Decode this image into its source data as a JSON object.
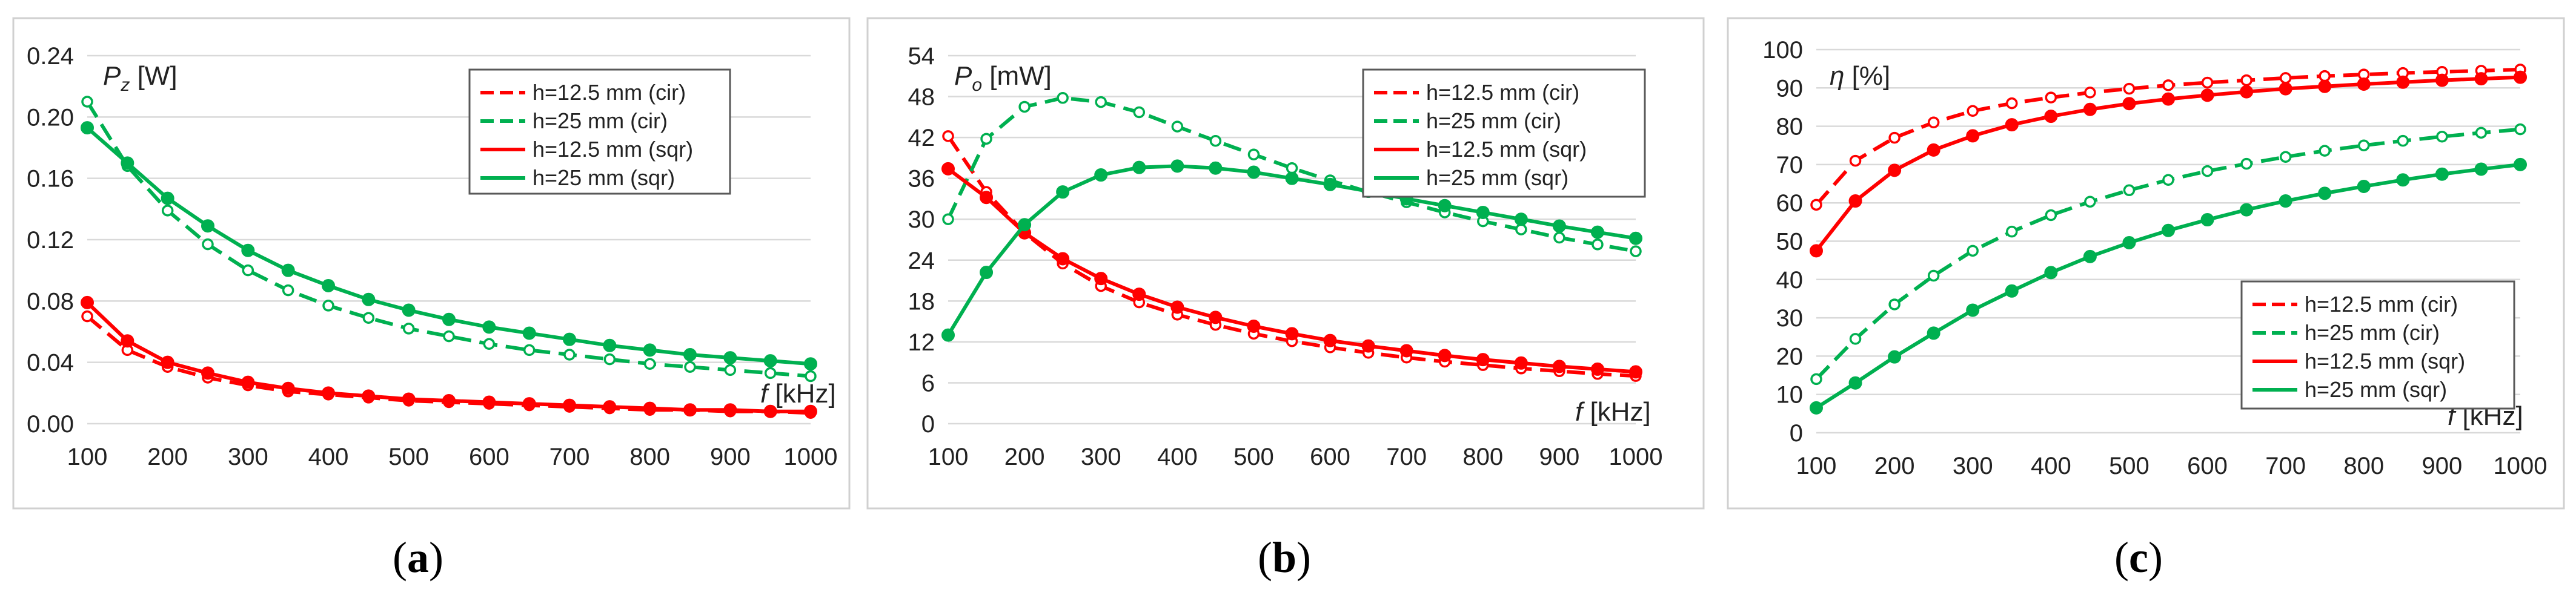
{
  "colors": {
    "red": "#ff0000",
    "green": "#00b050"
  },
  "chart_data": [
    {
      "type": "line",
      "caption": {
        "open": "(",
        "letter": "a",
        "close": ")"
      },
      "title": "",
      "ylabel": {
        "symbol": "P",
        "sub": "z",
        "unit": " [W]"
      },
      "xlabel": {
        "symbol": "f",
        "unit": " [kHz]"
      },
      "xlim": [
        100,
        1000
      ],
      "ylim": [
        0,
        0.24
      ],
      "xticks": [
        100,
        200,
        300,
        400,
        500,
        600,
        700,
        800,
        900,
        1000
      ],
      "yticks": [
        0,
        0.04,
        0.08,
        0.12,
        0.16,
        0.2,
        0.24
      ],
      "ytick_labels": [
        "0.00",
        "0.04",
        "0.08",
        "0.12",
        "0.16",
        "0.20",
        "0.24"
      ],
      "legend_position": "top-right",
      "x": [
        100,
        150,
        200,
        250,
        300,
        350,
        400,
        450,
        500,
        550,
        600,
        650,
        700,
        750,
        800,
        850,
        900,
        950,
        1000
      ],
      "series": [
        {
          "name": "h=12.5 mm (cir)",
          "color": "red",
          "dashed": true,
          "marker": "open",
          "values": [
            0.07,
            0.048,
            0.037,
            0.03,
            0.025,
            0.021,
            0.019,
            0.017,
            0.015,
            0.014,
            0.013,
            0.012,
            0.011,
            0.01,
            0.009,
            0.009,
            0.008,
            0.008,
            0.007
          ]
        },
        {
          "name": "h=25 mm (cir)",
          "color": "green",
          "dashed": true,
          "marker": "open",
          "values": [
            0.21,
            0.168,
            0.139,
            0.117,
            0.1,
            0.087,
            0.077,
            0.069,
            0.062,
            0.057,
            0.052,
            0.048,
            0.045,
            0.042,
            0.039,
            0.037,
            0.035,
            0.033,
            0.031
          ]
        },
        {
          "name": "h=12.5 mm (sqr)",
          "color": "red",
          "dashed": false,
          "marker": "filled",
          "values": [
            0.079,
            0.054,
            0.04,
            0.033,
            0.027,
            0.023,
            0.02,
            0.018,
            0.016,
            0.015,
            0.014,
            0.013,
            0.012,
            0.011,
            0.01,
            0.009,
            0.009,
            0.008,
            0.008
          ]
        },
        {
          "name": "h=25 mm (sqr)",
          "color": "green",
          "dashed": false,
          "marker": "filled",
          "values": [
            0.193,
            0.17,
            0.147,
            0.129,
            0.113,
            0.1,
            0.09,
            0.081,
            0.074,
            0.068,
            0.063,
            0.059,
            0.055,
            0.051,
            0.048,
            0.045,
            0.043,
            0.041,
            0.039
          ]
        }
      ]
    },
    {
      "type": "line",
      "caption": {
        "open": "(",
        "letter": "b",
        "close": ")"
      },
      "title": "",
      "ylabel": {
        "symbol": "P",
        "sub": "o",
        "unit": " [mW]"
      },
      "xlabel": {
        "symbol": "f",
        "unit": " [kHz]"
      },
      "xlim": [
        100,
        1000
      ],
      "ylim": [
        0,
        54
      ],
      "xticks": [
        100,
        200,
        300,
        400,
        500,
        600,
        700,
        800,
        900,
        1000
      ],
      "yticks": [
        0,
        6,
        12,
        18,
        24,
        30,
        36,
        42,
        48,
        54
      ],
      "ytick_labels": [
        "0",
        "6",
        "12",
        "18",
        "24",
        "30",
        "36",
        "42",
        "48",
        "54"
      ],
      "legend_position": "top-right",
      "x": [
        100,
        150,
        200,
        250,
        300,
        350,
        400,
        450,
        500,
        550,
        600,
        650,
        700,
        750,
        800,
        850,
        900,
        950,
        1000
      ],
      "series": [
        {
          "name": "h=12.5 mm (cir)",
          "color": "red",
          "dashed": true,
          "marker": "open",
          "values": [
            42.2,
            34.0,
            28.0,
            23.5,
            20.2,
            17.8,
            16.0,
            14.5,
            13.2,
            12.1,
            11.2,
            10.4,
            9.7,
            9.1,
            8.6,
            8.1,
            7.7,
            7.3,
            7.0
          ]
        },
        {
          "name": "h=25 mm (cir)",
          "color": "green",
          "dashed": true,
          "marker": "open",
          "values": [
            30.0,
            41.8,
            46.5,
            47.8,
            47.2,
            45.7,
            43.6,
            41.5,
            39.5,
            37.5,
            35.7,
            34.0,
            32.5,
            31.0,
            29.7,
            28.5,
            27.3,
            26.3,
            25.3
          ]
        },
        {
          "name": "h=12.5 mm (sqr)",
          "color": "red",
          "dashed": false,
          "marker": "filled",
          "values": [
            37.4,
            33.2,
            28.0,
            24.2,
            21.3,
            19.0,
            17.1,
            15.6,
            14.3,
            13.2,
            12.2,
            11.4,
            10.7,
            10.0,
            9.4,
            8.9,
            8.4,
            8.0,
            7.6
          ]
        },
        {
          "name": "h=25 mm (sqr)",
          "color": "green",
          "dashed": false,
          "marker": "filled",
          "values": [
            13.0,
            22.2,
            29.2,
            34.0,
            36.5,
            37.6,
            37.8,
            37.5,
            36.9,
            36.0,
            35.1,
            34.1,
            33.0,
            32.0,
            31.0,
            30.0,
            29.0,
            28.1,
            27.2
          ]
        }
      ]
    },
    {
      "type": "line",
      "caption": {
        "open": "(",
        "letter": "c",
        "close": ")"
      },
      "title": "",
      "ylabel": {
        "symbol": "η",
        "sub": "",
        "unit": " [%]"
      },
      "xlabel": {
        "symbol": "f",
        "unit": " [kHz]"
      },
      "xlim": [
        100,
        1000
      ],
      "ylim": [
        0,
        100
      ],
      "xticks": [
        100,
        200,
        300,
        400,
        500,
        600,
        700,
        800,
        900,
        1000
      ],
      "yticks": [
        0,
        10,
        20,
        30,
        40,
        50,
        60,
        70,
        80,
        90,
        100
      ],
      "ytick_labels": [
        "0",
        "10",
        "20",
        "30",
        "40",
        "50",
        "60",
        "70",
        "80",
        "90",
        "100"
      ],
      "legend_position": "bottom-right",
      "x": [
        100,
        150,
        200,
        250,
        300,
        350,
        400,
        450,
        500,
        550,
        600,
        650,
        700,
        750,
        800,
        850,
        900,
        950,
        1000
      ],
      "series": [
        {
          "name": "h=12.5 mm (cir)",
          "color": "red",
          "dashed": true,
          "marker": "open",
          "values": [
            59.5,
            71.0,
            77.0,
            81.0,
            84.0,
            86.0,
            87.5,
            88.8,
            89.8,
            90.7,
            91.4,
            92.0,
            92.6,
            93.1,
            93.5,
            93.9,
            94.2,
            94.5,
            94.8
          ]
        },
        {
          "name": "h=25 mm (cir)",
          "color": "green",
          "dashed": true,
          "marker": "open",
          "values": [
            14.0,
            24.5,
            33.5,
            41.0,
            47.5,
            52.5,
            56.8,
            60.3,
            63.3,
            66.0,
            68.3,
            70.2,
            72.0,
            73.6,
            75.0,
            76.2,
            77.3,
            78.3,
            79.2
          ]
        },
        {
          "name": "h=12.5 mm (sqr)",
          "color": "red",
          "dashed": false,
          "marker": "filled",
          "values": [
            47.5,
            60.5,
            68.5,
            73.8,
            77.5,
            80.4,
            82.6,
            84.4,
            85.9,
            87.1,
            88.1,
            89.0,
            89.8,
            90.4,
            91.0,
            91.5,
            92.0,
            92.4,
            92.8
          ]
        },
        {
          "name": "h=25 mm (sqr)",
          "color": "green",
          "dashed": false,
          "marker": "filled",
          "values": [
            6.5,
            13.0,
            19.8,
            26.0,
            32.0,
            37.0,
            41.8,
            46.0,
            49.6,
            52.8,
            55.6,
            58.2,
            60.5,
            62.5,
            64.3,
            66.0,
            67.5,
            68.8,
            70.0
          ]
        }
      ]
    }
  ]
}
